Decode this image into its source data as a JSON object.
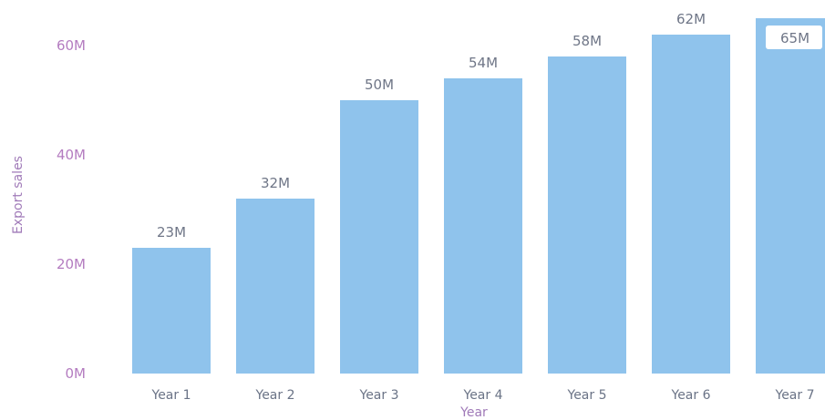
{
  "chart_data": {
    "type": "bar",
    "categories": [
      "Year 1",
      "Year 2",
      "Year 3",
      "Year 4",
      "Year 5",
      "Year 6",
      "Year 7"
    ],
    "values": [
      23,
      32,
      50,
      54,
      58,
      62,
      65
    ],
    "data_labels": [
      "23M",
      "32M",
      "50M",
      "54M",
      "58M",
      "62M",
      "65M"
    ],
    "y_ticks": [
      0,
      20,
      40,
      60
    ],
    "y_tick_labels": [
      "0M",
      "20M",
      "40M",
      "60M"
    ],
    "xlabel": "Year",
    "ylabel": "Export sales",
    "ylim": [
      0,
      65
    ],
    "grid": false,
    "colors": {
      "bar": "#8fc3ec",
      "label_highlight_bg": "#ffffff"
    }
  }
}
